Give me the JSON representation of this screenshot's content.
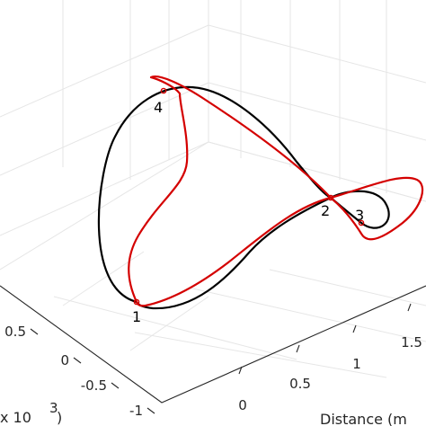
{
  "chart_data": {
    "type": "line",
    "projection": "3d",
    "grid": true,
    "axes": {
      "left_axis": {
        "ticks": [
          "0.5",
          "0",
          "-0.5",
          "-1"
        ],
        "exponent_label": "x 10",
        "exponent": "3"
      },
      "right_axis": {
        "label": "Distance (m",
        "ticks": [
          "0",
          "0.5",
          "1",
          "1.5"
        ]
      }
    },
    "series": [
      {
        "color": "#000000"
      },
      {
        "color": "#d40000"
      }
    ],
    "point_labels": [
      "1",
      "2",
      "3",
      "4"
    ]
  }
}
